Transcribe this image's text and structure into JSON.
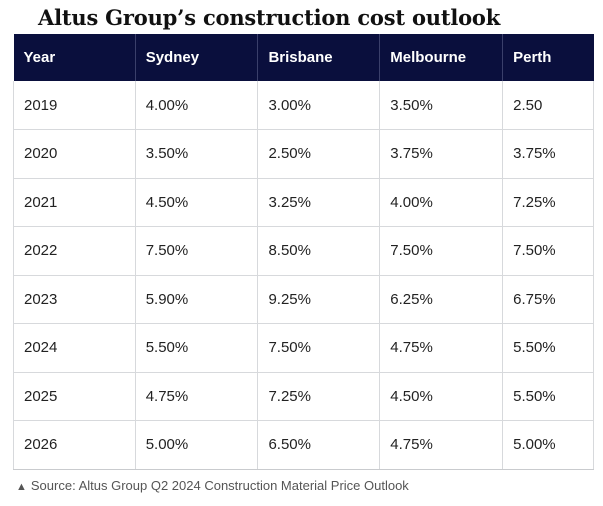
{
  "title": "Altus Group’s construction cost outlook",
  "source": {
    "icon": "triangle-up-icon",
    "glyph": "▲",
    "text": "Source: Altus Group Q2 2024 Construction Material Price Outlook"
  },
  "chart_data": {
    "type": "table",
    "title": "Altus Group’s construction cost outlook",
    "columns": [
      "Year",
      "Sydney",
      "Brisbane",
      "Melbourne",
      "Perth"
    ],
    "rows": [
      [
        "2019",
        "4.00%",
        "3.00%",
        "3.50%",
        "2.50"
      ],
      [
        "2020",
        "3.50%",
        "2.50%",
        "3.75%",
        "3.75%"
      ],
      [
        "2021",
        "4.50%",
        "3.25%",
        "4.00%",
        "7.25%"
      ],
      [
        "2022",
        "7.50%",
        "8.50%",
        "7.50%",
        "7.50%"
      ],
      [
        "2023",
        "5.90%",
        "9.25%",
        "6.25%",
        "6.75%"
      ],
      [
        "2024",
        "5.50%",
        "7.50%",
        "4.75%",
        "5.50%"
      ],
      [
        "2025",
        "4.75%",
        "7.25%",
        "4.50%",
        "5.50%"
      ],
      [
        "2026",
        "5.00%",
        "6.50%",
        "4.75%",
        "5.00%"
      ]
    ],
    "header_color": "#0a0f3d",
    "border_color": "#d7d9dc"
  }
}
